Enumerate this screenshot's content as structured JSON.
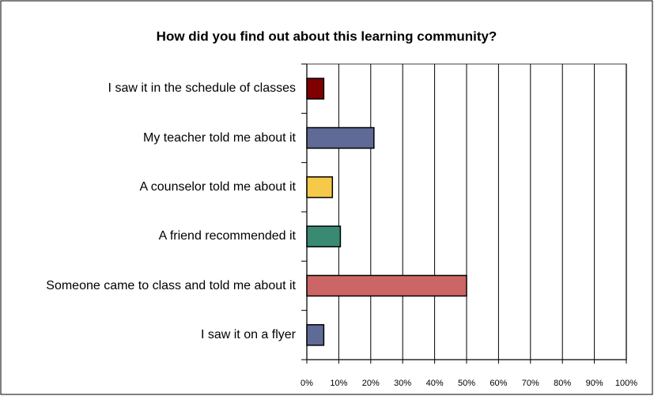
{
  "chart_data": {
    "type": "barh",
    "title": "How did you find out about this learning community?",
    "categories": [
      "I saw it in the schedule of classes",
      "My teacher told me about it",
      "A counselor told me about it",
      "A friend recommended it",
      "Someone came to class and told me about it",
      "I saw it on a flyer"
    ],
    "values": [
      5.3,
      21,
      8,
      10.5,
      50,
      5.3
    ],
    "colors": [
      "#800000",
      "#5f6a96",
      "#f7c948",
      "#3a8a73",
      "#cc6666",
      "#5f6a96"
    ],
    "xlim": [
      0,
      100
    ],
    "xticks": [
      {
        "value": 0,
        "label": "0%"
      },
      {
        "value": 10,
        "label": "10%"
      },
      {
        "value": 20,
        "label": "20%"
      },
      {
        "value": 30,
        "label": "30%"
      },
      {
        "value": 40,
        "label": "40%"
      },
      {
        "value": 50,
        "label": "50%"
      },
      {
        "value": 60,
        "label": "60%"
      },
      {
        "value": 70,
        "label": "70%"
      },
      {
        "value": 80,
        "label": "80%"
      },
      {
        "value": 90,
        "label": "90%"
      },
      {
        "value": 100,
        "label": "100%"
      }
    ],
    "grid": true
  }
}
